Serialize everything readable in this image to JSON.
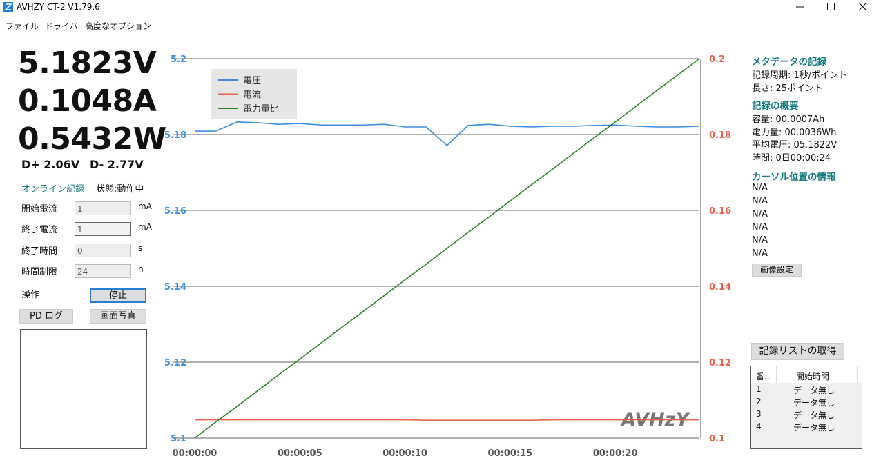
{
  "window": {
    "title": "AVHZY CT-2 V1.79.6"
  },
  "menu": [
    "ファイル",
    "ドライバ",
    "高度なオプション"
  ],
  "readings": {
    "voltage": "5.1823V",
    "current": "0.1048A",
    "power": "0.5432W",
    "dplus": "D+ 2.06V",
    "dminus": "D- 2.77V"
  },
  "recording": {
    "label": "オンライン記録",
    "status": "状態:動作中"
  },
  "fields": [
    {
      "label": "開始電流",
      "value": "1",
      "unit": "mA"
    },
    {
      "label": "終了電流",
      "value": "1",
      "unit": "mA"
    },
    {
      "label": "終了時間",
      "value": "0",
      "unit": "s"
    },
    {
      "label": "時間制限",
      "value": "24",
      "unit": "h"
    }
  ],
  "operation": {
    "label": "操作",
    "stop": "停止",
    "pd_log": "PD ログ",
    "screenshot": "画面写真"
  },
  "metadata": {
    "heading": "メタデータの記録",
    "lines": [
      "記録周期: 1秒/ポイント",
      "長さ: 25ポイント"
    ]
  },
  "summary": {
    "heading": "記録の概要",
    "lines": [
      "容量: 00.0007Ah",
      "電力量: 00.0036Wh",
      "平均電圧: 05.1822V",
      "時間: 0日00:00:24"
    ]
  },
  "cursor": {
    "heading": "カーソル位置の情報",
    "lines": [
      "N/A",
      "N/A",
      "N/A",
      "N/A",
      "N/A",
      "N/A"
    ],
    "button": "画像設定"
  },
  "record_list": {
    "button": "記録リストの取得",
    "headers": [
      "番..",
      "開始時間"
    ],
    "rows": [
      [
        "1",
        "データ無し"
      ],
      [
        "2",
        "データ無し"
      ],
      [
        "3",
        "データ無し"
      ],
      [
        "4",
        "データ無し"
      ]
    ]
  },
  "chart_data": {
    "type": "line",
    "watermark": "AVHzY",
    "legend": "upper left",
    "grid": true,
    "x": [
      0,
      1,
      2,
      3,
      4,
      5,
      6,
      7,
      8,
      9,
      10,
      11,
      12,
      13,
      14,
      15,
      16,
      17,
      18,
      19,
      20,
      21,
      22,
      23,
      24
    ],
    "xlim": [
      0,
      24
    ],
    "xticks": [
      {
        "value": 0,
        "label": "00:00:00"
      },
      {
        "value": 5,
        "label": "00:00:05"
      },
      {
        "value": 10,
        "label": "00:00:10"
      },
      {
        "value": 15,
        "label": "00:00:15"
      },
      {
        "value": 20,
        "label": "00:00:20"
      }
    ],
    "ylim": [
      5.1,
      5.2
    ],
    "yticks": [
      5.1,
      5.12,
      5.14,
      5.16,
      5.18,
      5.2
    ],
    "y2lim": [
      0.1,
      0.2
    ],
    "y2ticks": [
      0.1,
      0.12,
      0.14,
      0.16,
      0.18,
      0.2
    ],
    "series": [
      {
        "name": "電圧",
        "color": "#3c8ee0",
        "axis": "y",
        "values": [
          5.1809,
          5.1809,
          5.1833,
          5.1831,
          5.1827,
          5.1829,
          5.1825,
          5.1825,
          5.1825,
          5.1827,
          5.182,
          5.182,
          5.1771,
          5.1824,
          5.1827,
          5.1822,
          5.182,
          5.1822,
          5.1822,
          5.1824,
          5.1825,
          5.1822,
          5.182,
          5.182,
          5.1822
        ]
      },
      {
        "name": "電流",
        "color": "#e8634a",
        "axis": "y2",
        "values": [
          0.1048,
          0.1048,
          0.1048,
          0.1048,
          0.1048,
          0.1048,
          0.1048,
          0.1048,
          0.1048,
          0.1048,
          0.1048,
          0.1047,
          0.1047,
          0.1047,
          0.1047,
          0.1047,
          0.1047,
          0.1048,
          0.1048,
          0.1048,
          0.1048,
          0.1048,
          0.1048,
          0.1048,
          0.1048
        ]
      },
      {
        "name": "電力量比",
        "color": "#1e8a1e",
        "axis": "y2",
        "values": [
          0.1,
          0.1042,
          0.1083,
          0.1125,
          0.1167,
          0.1208,
          0.125,
          0.1292,
          0.1333,
          0.1375,
          0.1417,
          0.1458,
          0.15,
          0.1542,
          0.1583,
          0.1625,
          0.1667,
          0.1708,
          0.175,
          0.1792,
          0.1833,
          0.1875,
          0.1917,
          0.1958,
          0.2
        ]
      }
    ]
  }
}
